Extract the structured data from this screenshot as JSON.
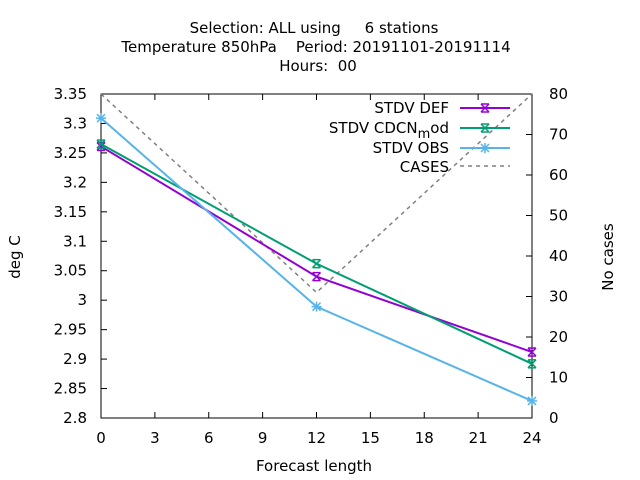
{
  "chart_data": {
    "type": "line",
    "title_lines": [
      "Selection: ALL using     6 stations",
      "Temperature 850hPa    Period: 20191101-20191114",
      "Hours:  00"
    ],
    "xlabel": "Forecast length",
    "ylabel": "deg C",
    "y2label": "No cases",
    "x_ticks": [
      0,
      3,
      6,
      9,
      12,
      15,
      18,
      21,
      24
    ],
    "y_ticks": [
      "2.8",
      "2.85",
      "2.9",
      "2.95",
      "3",
      "3.05",
      "3.1",
      "3.15",
      "3.2",
      "3.25",
      "3.3",
      "3.35"
    ],
    "y2_ticks": [
      0,
      10,
      20,
      30,
      40,
      50,
      60,
      70,
      80
    ],
    "xlim": [
      0,
      24
    ],
    "ylim": [
      2.8,
      3.35
    ],
    "y2lim": [
      0,
      80
    ],
    "grid": false,
    "legend_position": "top-right",
    "series": [
      {
        "name": "STDV DEF",
        "color": "#9400d3",
        "axis": "left",
        "style": "solid",
        "marker": "x-cross",
        "x": [
          0,
          12,
          24
        ],
        "y": [
          3.261,
          3.04,
          2.912
        ]
      },
      {
        "name": "STDV CDCN_mod",
        "legend_main": "STDV CDCN",
        "legend_sub": "m",
        "legend_tail": "od",
        "color": "#009e73",
        "axis": "left",
        "style": "solid",
        "marker": "x-cross",
        "x": [
          0,
          12,
          24
        ],
        "y": [
          3.265,
          3.062,
          2.892
        ]
      },
      {
        "name": "STDV OBS",
        "color": "#56b4e9",
        "axis": "left",
        "style": "solid",
        "marker": "star",
        "x": [
          0,
          12,
          24
        ],
        "y": [
          3.309,
          2.989,
          2.829
        ]
      },
      {
        "name": "CASES",
        "color": "#808080",
        "axis": "right",
        "style": "dashed",
        "marker": "none",
        "x": [
          0,
          12,
          24
        ],
        "y": [
          80,
          31,
          80
        ]
      }
    ]
  }
}
